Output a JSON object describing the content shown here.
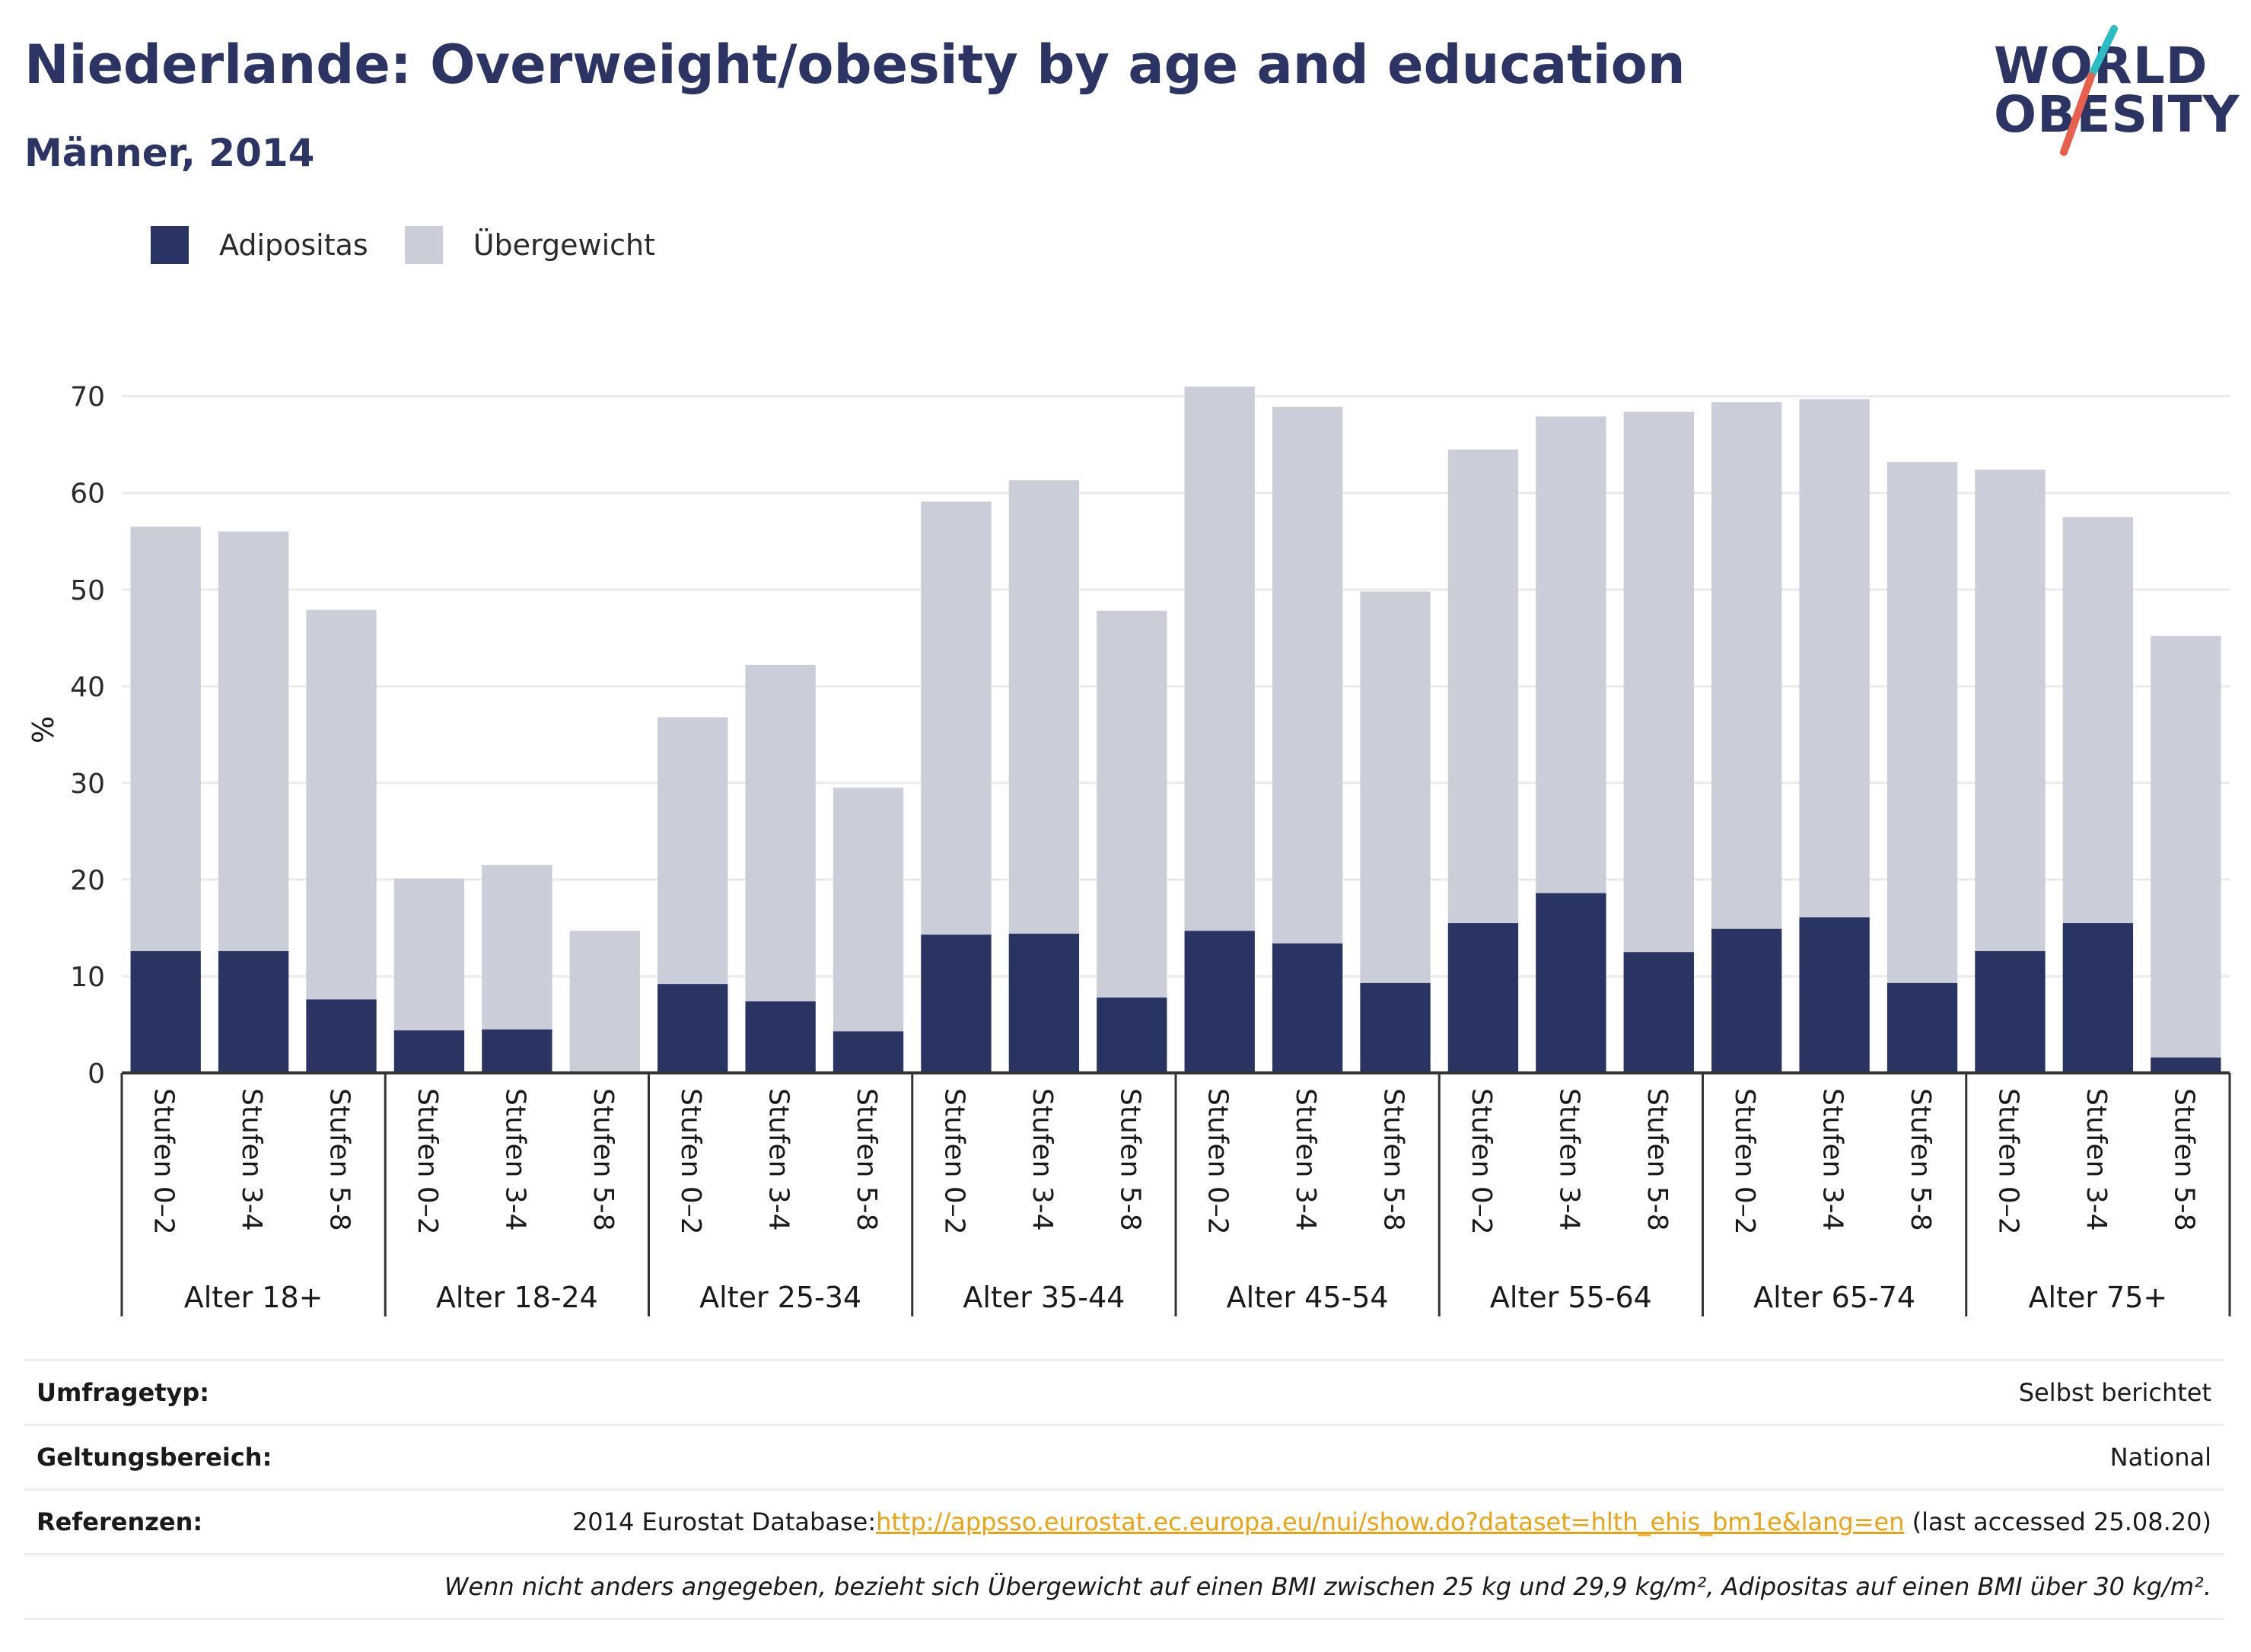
{
  "header": {
    "title": "Niederlande: Overweight/obesity by age and education",
    "subtitle": "Männer, 2014"
  },
  "logo": {
    "line1": "WORLD",
    "line2": "OBESITY"
  },
  "colors": {
    "obesity": "#293462",
    "overweight": "#cbcdd9",
    "title": "#2b3462",
    "link": "#e8a317",
    "logo_slash_top": "#2bbcc4",
    "logo_slash_bottom": "#e8604c"
  },
  "legend": [
    {
      "label": "Adipositas",
      "color": "#293462"
    },
    {
      "label": "Übergewicht",
      "color": "#cbcdd9"
    }
  ],
  "chart_data": {
    "type": "bar",
    "stacked": true,
    "ylabel": "%",
    "ylim": [
      0,
      71
    ],
    "yticks": [
      0,
      10,
      20,
      30,
      40,
      50,
      60,
      70
    ],
    "grid": true,
    "legend_position": "top-left",
    "groups": [
      "Alter 18+",
      "Alter 18-24",
      "Alter 25-34",
      "Alter 35-44",
      "Alter 45-54",
      "Alter 55-64",
      "Alter 65-74",
      "Alter 75+"
    ],
    "subcategories": [
      "Stufen 0–2",
      "Stufen 3-4",
      "Stufen 5-8"
    ],
    "series": [
      {
        "name": "Adipositas",
        "values": [
          12.6,
          12.6,
          7.6,
          4.4,
          4.5,
          0.0,
          9.2,
          7.4,
          4.3,
          14.3,
          14.4,
          7.8,
          14.7,
          13.4,
          9.3,
          15.5,
          18.6,
          12.5,
          14.9,
          16.1,
          9.3,
          12.6,
          15.5,
          1.6
        ]
      },
      {
        "name": "Übergewicht",
        "values": [
          43.9,
          43.4,
          40.3,
          15.7,
          17.0,
          14.7,
          27.6,
          34.8,
          25.2,
          44.8,
          46.9,
          40.0,
          56.3,
          55.5,
          40.5,
          49.0,
          49.3,
          55.9,
          54.5,
          53.6,
          53.9,
          49.8,
          42.0,
          43.6
        ]
      }
    ]
  },
  "info": {
    "survey_type_label": "Umfragetyp:",
    "survey_type_value": "Selbst berichtet",
    "scope_label": "Geltungsbereich:",
    "scope_value": "National",
    "references_label": "Referenzen:",
    "references_prefix": "2014 Eurostat Database:",
    "references_link": "http://appsso.eurostat.ec.europa.eu/nui/show.do?dataset=hlth_ehis_bm1e&lang=en",
    "references_suffix": " (last accessed 25.08.20)",
    "note": "Wenn nicht anders angegeben, bezieht sich Übergewicht auf einen BMI zwischen 25 kg und 29,9 kg/m², Adipositas auf einen BMI über 30 kg/m²."
  }
}
